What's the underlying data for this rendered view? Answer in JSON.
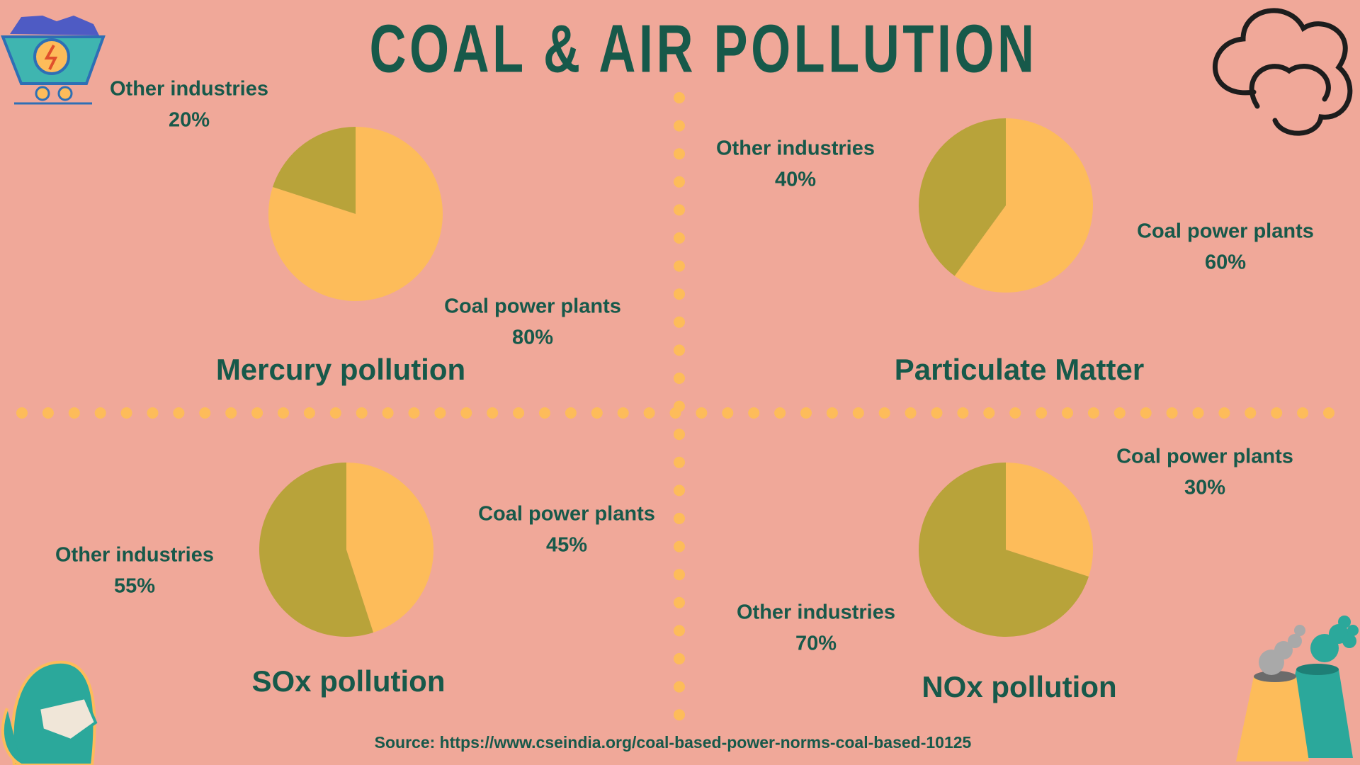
{
  "title": "COAL & AIR POLLUTION",
  "source": "Source: https://www.cseindia.org/coal-based-power-norms-coal-based-10125",
  "chart_data": [
    {
      "type": "pie",
      "title": "Mercury pollution",
      "categories": [
        "Coal power plants",
        "Other industries"
      ],
      "values": [
        80,
        20
      ],
      "value_labels": [
        "80%",
        "20%"
      ],
      "colors": [
        "#FDBC5A",
        "#B8A33A"
      ]
    },
    {
      "type": "pie",
      "title": "Particulate Matter",
      "categories": [
        "Coal power plants",
        "Other industries"
      ],
      "values": [
        60,
        40
      ],
      "value_labels": [
        "60%",
        "40%"
      ],
      "colors": [
        "#FDBC5A",
        "#B8A33A"
      ]
    },
    {
      "type": "pie",
      "title": "SOx  pollution",
      "categories": [
        "Coal power plants",
        "Other industries"
      ],
      "values": [
        45,
        55
      ],
      "value_labels": [
        "45%",
        "55%"
      ],
      "colors": [
        "#FDBC5A",
        "#B8A33A"
      ]
    },
    {
      "type": "pie",
      "title": "NOx  pollution",
      "categories": [
        "Coal power plants",
        "Other industries"
      ],
      "values": [
        30,
        70
      ],
      "value_labels": [
        "30%",
        "70%"
      ],
      "colors": [
        "#FDBC5A",
        "#B8A33A"
      ]
    }
  ]
}
